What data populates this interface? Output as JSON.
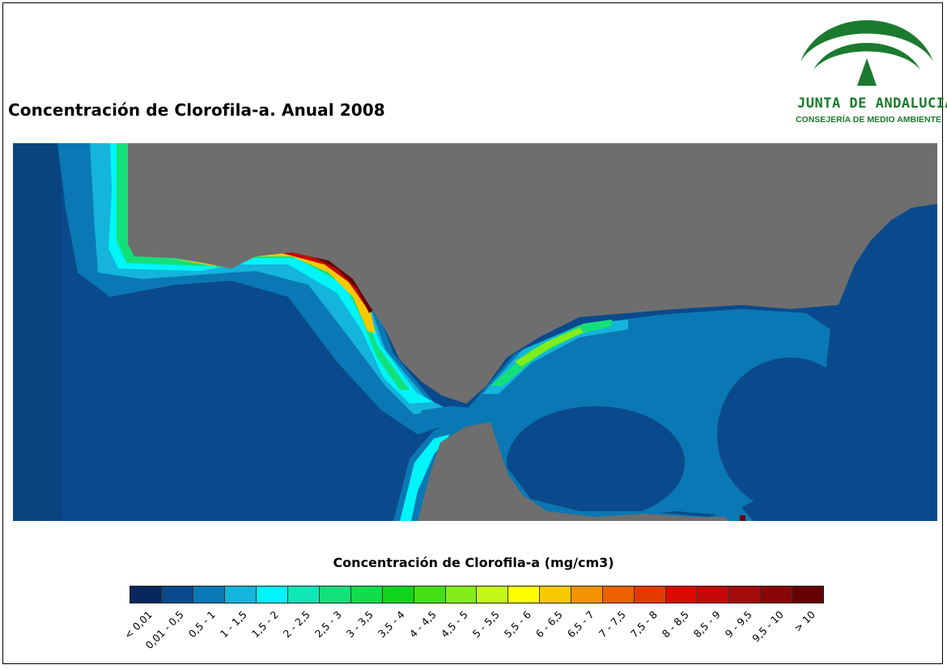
{
  "title": "Concentración de Clorofila-a. Anual 2008",
  "logo": {
    "name": "JUNTA DE ANDALUCIA",
    "subtitle": "CONSEJERÍA DE MEDIO AMBIENTE",
    "color": "#1b7a2e"
  },
  "map": {
    "land_color": "#6e6e6e",
    "ocean_color": "#0a4a8c"
  },
  "legend": {
    "title": "Concentración de Clorofila-a (mg/cm3)",
    "classes": [
      {
        "label": "< 0,01",
        "color": "#08285c"
      },
      {
        "label": "0,01 - 0,5",
        "color": "#0a4a8c"
      },
      {
        "label": "0,5 - 1",
        "color": "#0a78b4"
      },
      {
        "label": "1 - 1,5",
        "color": "#14b4dc"
      },
      {
        "label": "1,5 - 2",
        "color": "#00f4f8"
      },
      {
        "label": "2 - 2,5",
        "color": "#10e8b8"
      },
      {
        "label": "2,5 - 3",
        "color": "#14e07a"
      },
      {
        "label": "3 - 3,5",
        "color": "#10dc4c"
      },
      {
        "label": "3,5 - 4",
        "color": "#10d41c"
      },
      {
        "label": "4 - 4,5",
        "color": "#44e014"
      },
      {
        "label": "4,5 - 5",
        "color": "#84ec1a"
      },
      {
        "label": "5 - 5,5",
        "color": "#c4f818"
      },
      {
        "label": "5,5 - 6",
        "color": "#ffff00"
      },
      {
        "label": "6 - 6,5",
        "color": "#f8c800"
      },
      {
        "label": "6,5 - 7",
        "color": "#f49200"
      },
      {
        "label": "7 - 7,5",
        "color": "#ec6000"
      },
      {
        "label": "7,5 - 8",
        "color": "#e43a00"
      },
      {
        "label": "8 - 8,5",
        "color": "#dc0a00"
      },
      {
        "label": "8,5 - 9",
        "color": "#c40808"
      },
      {
        "label": "9 - 9,5",
        "color": "#a40a0a"
      },
      {
        "label": "9,5 - 10",
        "color": "#880606"
      },
      {
        "label": "> 10",
        "color": "#640202"
      }
    ]
  }
}
